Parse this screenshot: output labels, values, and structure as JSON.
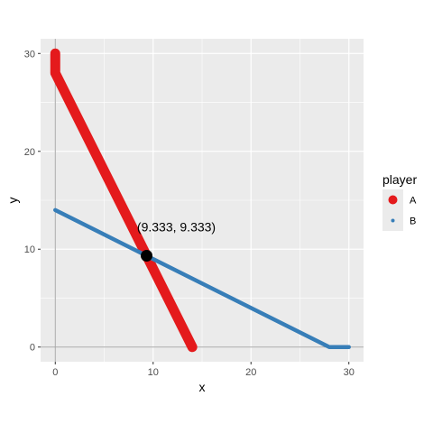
{
  "chart_data": {
    "type": "line",
    "xlabel": "x",
    "ylabel": "y",
    "xlim": [
      -1.5,
      31.5
    ],
    "ylim": [
      -1.5,
      31.5
    ],
    "x_ticks": [
      0,
      10,
      20,
      30
    ],
    "y_ticks": [
      0,
      10,
      20,
      30
    ],
    "x_tick_labels": [
      "0",
      "10",
      "20",
      "30"
    ],
    "y_tick_labels": [
      "0",
      "10",
      "20",
      "30"
    ],
    "grid": true,
    "legend": {
      "title": "player",
      "placement": "right"
    },
    "series": [
      {
        "name": "A",
        "color": "#E41A1C",
        "points": [
          [
            0,
            30
          ],
          [
            0,
            28
          ],
          [
            14,
            0
          ]
        ]
      },
      {
        "name": "B",
        "color": "#377EB8",
        "points": [
          [
            0,
            14
          ],
          [
            28,
            0
          ],
          [
            30,
            0
          ]
        ]
      }
    ],
    "highlight_point": {
      "x": 9.333,
      "y": 9.333,
      "color": "#000000",
      "label": "(9.333, 9.333)"
    }
  }
}
